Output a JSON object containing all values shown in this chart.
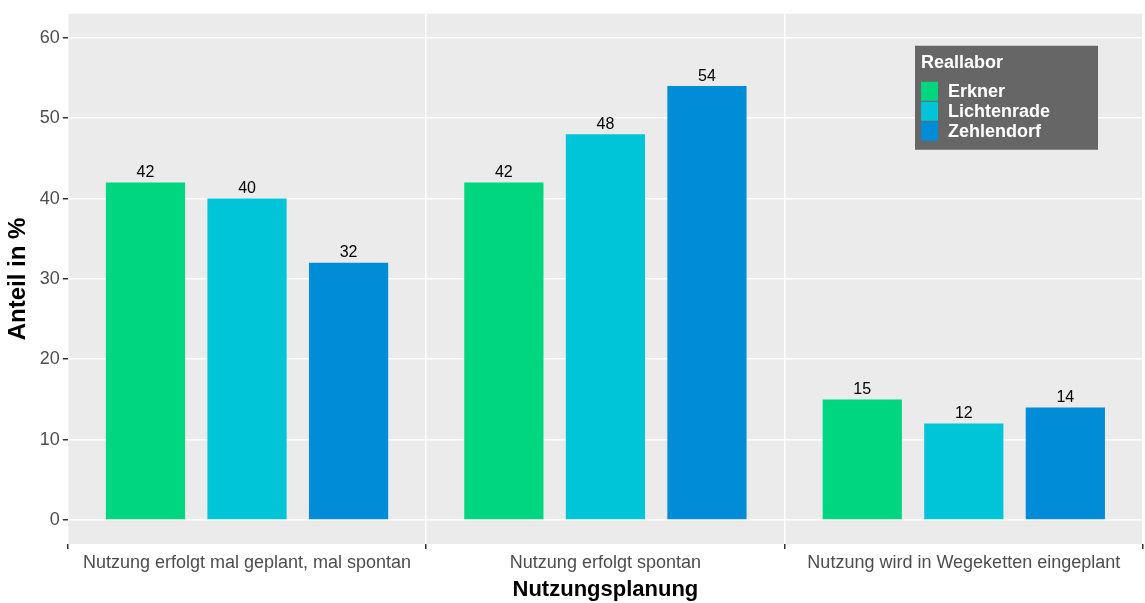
{
  "chart_data": {
    "type": "bar",
    "xlabel": "Nutzungsplanung",
    "ylabel": "Anteil in %",
    "legend_title": "Reallabor",
    "categories": [
      "Nutzung erfolgt mal geplant, mal spontan",
      "Nutzung erfolgt spontan",
      "Nutzung wird in Wegeketten eingeplant"
    ],
    "series": [
      {
        "name": "Erkner",
        "color": "#00d67f",
        "values": [
          42,
          42,
          15
        ]
      },
      {
        "name": "Lichtenrade",
        "color": "#00c5d8",
        "values": [
          40,
          48,
          12
        ]
      },
      {
        "name": "Zehlendorf",
        "color": "#008cd6",
        "values": [
          32,
          54,
          14
        ]
      }
    ],
    "ylim": [
      -3,
      63
    ],
    "yticks": [
      0,
      10,
      20,
      30,
      40,
      50,
      60
    ],
    "grid": true,
    "legend": "top right",
    "data_labels": true
  }
}
